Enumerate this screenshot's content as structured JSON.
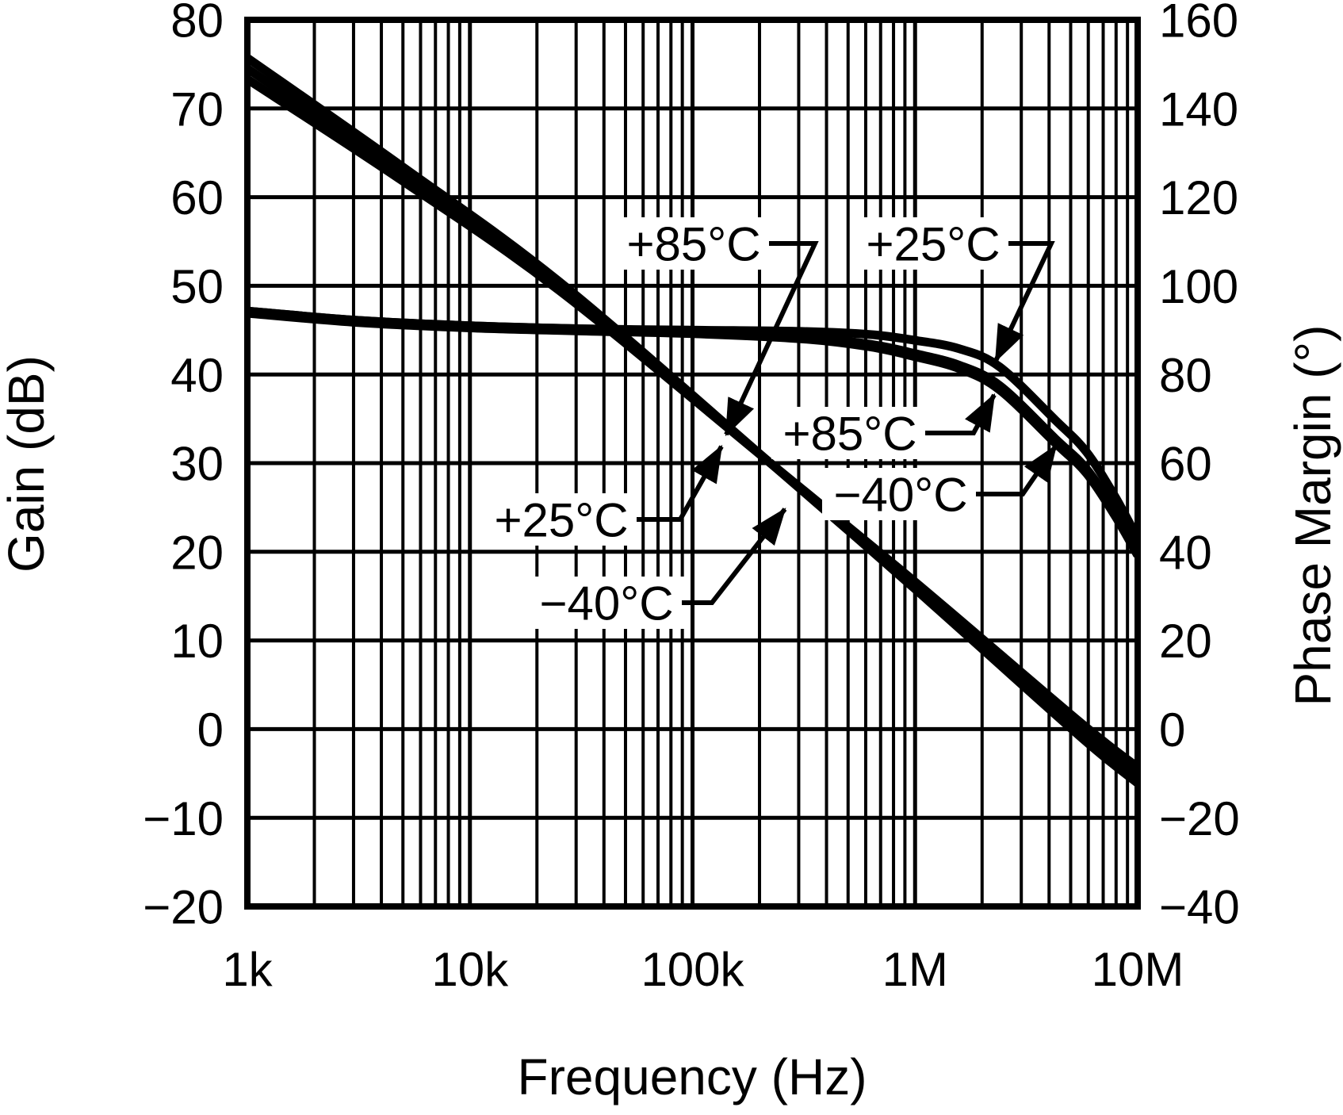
{
  "page": {
    "background": "#ffffff",
    "ink": "#000000"
  },
  "chart_data": {
    "type": "line",
    "title": "",
    "xlabel": "Frequency (Hz)",
    "ylabel_left": "Gain (dB)",
    "ylabel_right": "Phase Margin (°)",
    "x_scale": "log",
    "x_range_hz": [
      1000,
      10000000
    ],
    "x_ticks": [
      {
        "f": 1000,
        "label": "1k"
      },
      {
        "f": 10000,
        "label": "10k"
      },
      {
        "f": 100000,
        "label": "100k"
      },
      {
        "f": 1000000,
        "label": "1M"
      },
      {
        "f": 10000000,
        "label": "10M"
      }
    ],
    "x_minor_multiples": [
      2,
      3,
      4,
      5,
      6,
      7,
      8,
      9
    ],
    "y_left": {
      "range": [
        -20,
        80
      ],
      "ticks": [
        80,
        70,
        60,
        50,
        40,
        30,
        20,
        10,
        0,
        -10,
        -20
      ]
    },
    "y_right": {
      "range": [
        -40,
        160
      ],
      "ticks": [
        160,
        140,
        120,
        100,
        80,
        60,
        40,
        20,
        0,
        -20,
        -40
      ]
    },
    "grid": "log-x full grid, 10 dB / 20 deg horizontal rules",
    "legend_position": "none (inline callout arrows)",
    "series": [
      {
        "name": "Gain +85°C",
        "axis": "left",
        "units": "dB",
        "x": [
          1000,
          5000,
          25100,
          224000,
          1000000,
          5500000,
          10000000
        ],
        "y": [
          73.3,
          61.8,
          49.5,
          30.0,
          16.6,
          0.8,
          -4.3
        ]
      },
      {
        "name": "Gain +25°C",
        "axis": "left",
        "units": "dB",
        "x": [
          1000,
          5000,
          25100,
          224000,
          1000000,
          5500000,
          10000000
        ],
        "y": [
          74.5,
          62.6,
          50.0,
          30.0,
          16.2,
          0.0,
          -5.2
        ]
      },
      {
        "name": "Gain −40°C",
        "axis": "left",
        "units": "dB",
        "x": [
          1000,
          5000,
          25100,
          224000,
          1000000,
          5500000,
          10000000
        ],
        "y": [
          75.7,
          63.4,
          50.5,
          30.0,
          15.8,
          -0.8,
          -6.1
        ]
      },
      {
        "name": "Phase Margin +25°C",
        "axis": "right",
        "units": "deg",
        "x": [
          1000,
          3160,
          10000,
          31600,
          100000,
          316000,
          631000,
          1000000,
          1580000,
          2400000,
          4270000,
          5890000,
          7940000,
          10000000
        ],
        "y": [
          94.3,
          92.2,
          91.0,
          90.3,
          90.0,
          89.7,
          89.0,
          87.7,
          85.8,
          81.7,
          69.7,
          62.5,
          52.3,
          43.0
        ]
      },
      {
        "name": "Phase Margin +85°C",
        "axis": "right",
        "units": "deg",
        "x": [
          1000,
          3160,
          10000,
          31600,
          100000,
          316000,
          631000,
          1000000,
          1580000,
          2400000,
          4270000,
          5890000,
          7940000,
          10000000
        ],
        "y": [
          94.3,
          92.2,
          91.0,
          90.3,
          89.7,
          88.4,
          86.8,
          84.7,
          82.1,
          77.5,
          65.5,
          58.7,
          49.0,
          40.2
        ]
      },
      {
        "name": "Phase Margin −40°C",
        "axis": "right",
        "units": "deg",
        "x": [
          1000,
          3160,
          10000,
          31600,
          100000,
          316000,
          631000,
          1000000,
          1580000,
          2400000,
          4270000,
          5890000,
          7940000,
          10000000
        ],
        "y": [
          93.8,
          91.7,
          90.5,
          89.8,
          89.2,
          88.0,
          86.2,
          84.0,
          81.3,
          76.5,
          64.5,
          57.7,
          48.0,
          39.2
        ]
      }
    ],
    "callouts": [
      {
        "label": "+85°C",
        "points_to": "gain curve, upper trace near 140 kHz"
      },
      {
        "label": "+25°C",
        "points_to": "phase margin curve, upper edge near 2.3 MHz"
      },
      {
        "label": "+85°C",
        "points_to": "phase margin curve, lower edge near 2.3 MHz"
      },
      {
        "label": "−40°C",
        "points_to": "phase margin curve near 4.4 MHz"
      },
      {
        "label": "+25°C",
        "points_to": "gain curve, middle trace near 140 kHz"
      },
      {
        "label": "−40°C",
        "points_to": "gain curve, lower trace near 270 kHz"
      }
    ]
  }
}
